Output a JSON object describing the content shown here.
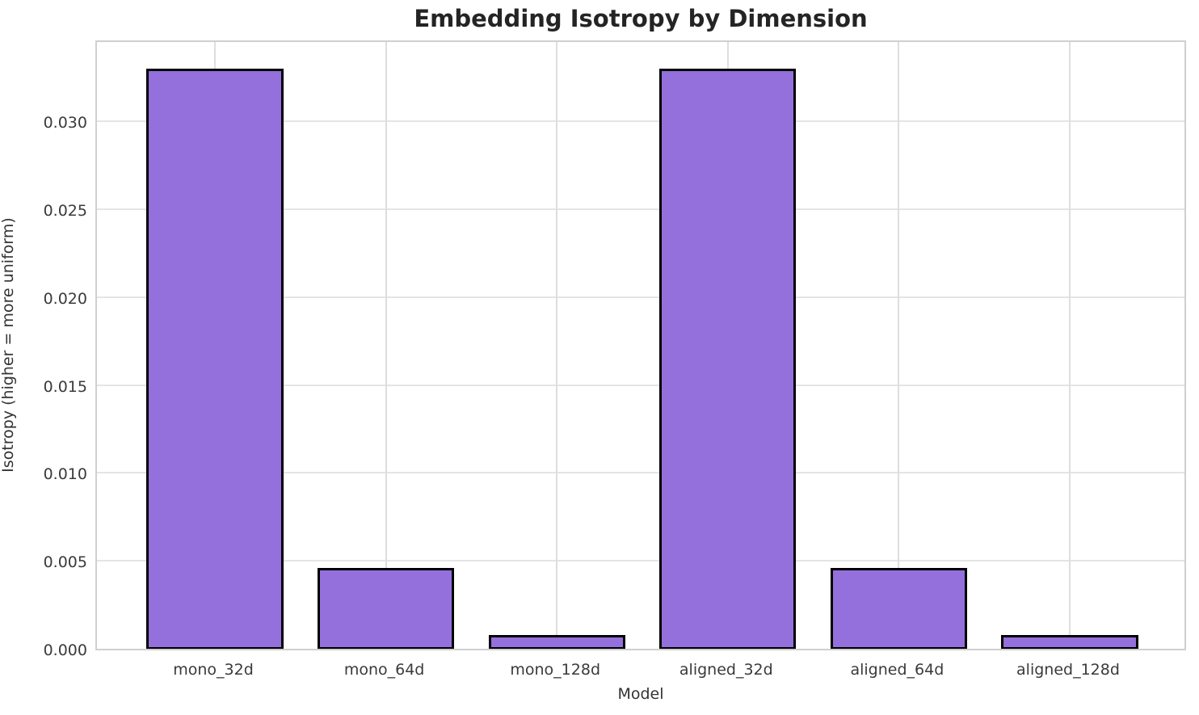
{
  "chart_data": {
    "type": "bar",
    "title": "Embedding Isotropy by Dimension",
    "xlabel": "Model",
    "ylabel": "Isotropy (higher = more uniform)",
    "categories": [
      "mono_32d",
      "mono_64d",
      "mono_128d",
      "aligned_32d",
      "aligned_64d",
      "aligned_128d"
    ],
    "values": [
      0.033,
      0.0046,
      0.0008,
      0.033,
      0.0046,
      0.0008
    ],
    "yticks": [
      0.0,
      0.005,
      0.01,
      0.015,
      0.02,
      0.025,
      0.03
    ],
    "ytick_labels": [
      "0.000",
      "0.005",
      "0.010",
      "0.015",
      "0.020",
      "0.025",
      "0.030"
    ],
    "ylim": [
      0,
      0.0347
    ],
    "xlim": [
      -0.69,
      5.69
    ],
    "bar_width_units": 0.8,
    "grid": true,
    "legend": "none",
    "colors": {
      "bar_fill": "#9370DB",
      "bar_edge": "#000000",
      "grid_line": "#e4e4e4",
      "spine": "#cfcfcf",
      "title_text": "#242424",
      "tick_text": "#3a3a3a",
      "background": "#ffffff"
    }
  }
}
